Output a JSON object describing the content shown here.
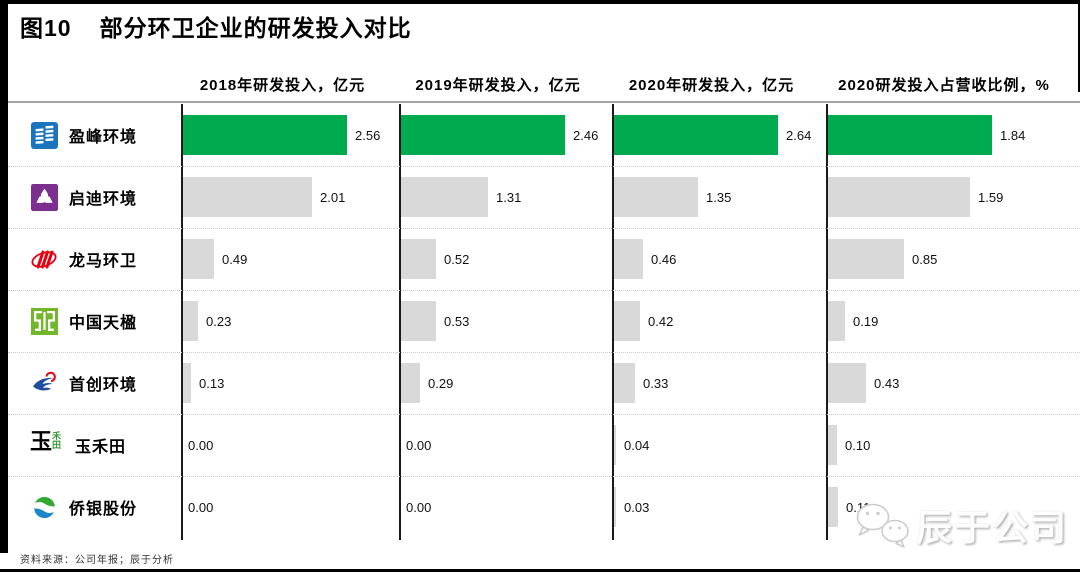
{
  "figure": {
    "label": "图10",
    "title": "部分环卫企业的研发投入对比"
  },
  "source_note": "资料来源：公司年报；辰于分析",
  "watermark": {
    "name": "辰于公司",
    "icon": "wechat-icon"
  },
  "colors": {
    "highlight_bar": "#00AB50",
    "default_bar": "#D9D9D9",
    "axis": "#1a1a1a"
  },
  "chart_data": {
    "type": "bar",
    "orientation": "horizontal",
    "title": "图10 部分环卫企业的研发投入对比",
    "legend": "none",
    "grid": "off",
    "value_label_format": "0.00",
    "columns": [
      {
        "header": "2018年研发投入，亿元",
        "unit": "亿元"
      },
      {
        "header": "2019年研发投入，亿元",
        "unit": "亿元"
      },
      {
        "header": "2020年研发投入，亿元",
        "unit": "亿元"
      },
      {
        "header": "2020研发投入占营收比例，%",
        "unit": "%"
      }
    ],
    "companies": [
      {
        "name": "盈峰环境",
        "logo": "yingfeng",
        "highlight": true,
        "values": [
          2.56,
          2.46,
          2.64,
          1.84
        ]
      },
      {
        "name": "启迪环境",
        "logo": "qidi",
        "highlight": false,
        "values": [
          2.01,
          1.31,
          1.35,
          1.59
        ]
      },
      {
        "name": "龙马环卫",
        "logo": "longma",
        "highlight": false,
        "values": [
          0.49,
          0.52,
          0.46,
          0.85
        ]
      },
      {
        "name": "中国天楹",
        "logo": "tianying",
        "highlight": false,
        "values": [
          0.23,
          0.53,
          0.42,
          0.19
        ]
      },
      {
        "name": "首创环境",
        "logo": "shouchuang",
        "highlight": false,
        "values": [
          0.13,
          0.29,
          0.33,
          0.43
        ]
      },
      {
        "name": "玉禾田",
        "logo": "yuhetian",
        "logo_text": {
          "main": "玉",
          "small": "禾田"
        },
        "highlight": false,
        "values": [
          0.0,
          0.0,
          0.04,
          0.1
        ]
      },
      {
        "name": "侨银股份",
        "logo": "qiaoyin",
        "highlight": false,
        "values": [
          0.0,
          0.0,
          0.03,
          0.11
        ]
      }
    ]
  }
}
